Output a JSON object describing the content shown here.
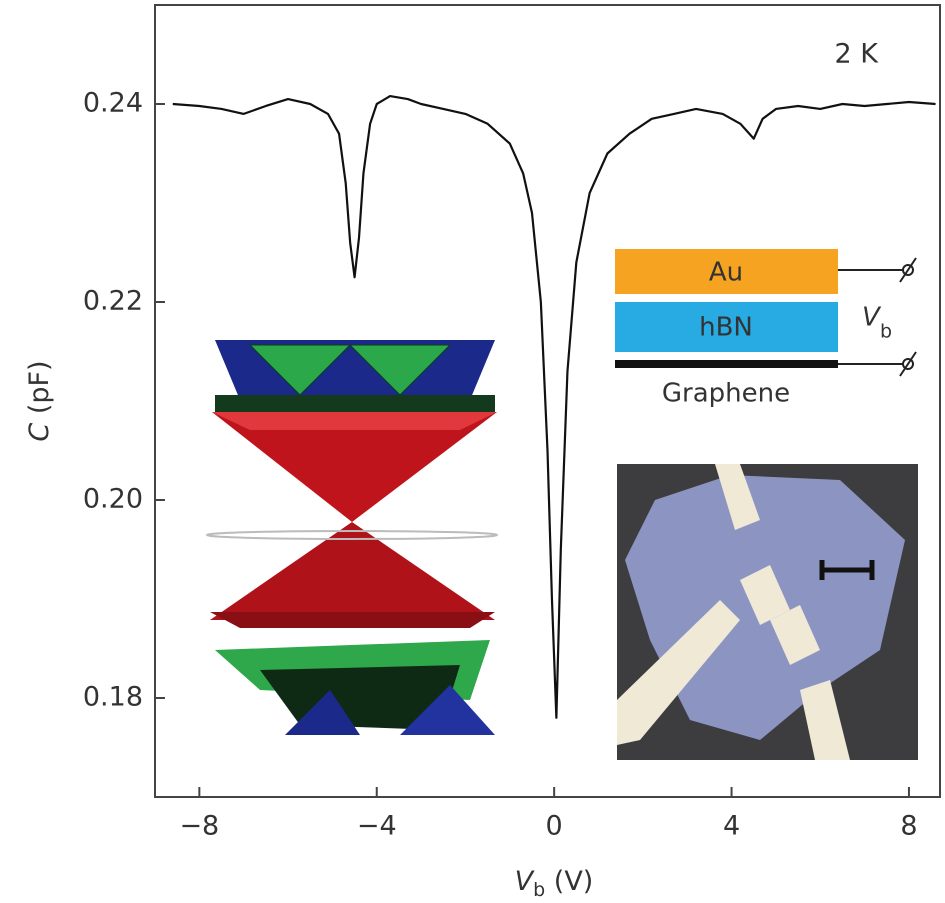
{
  "chart_data": {
    "type": "line",
    "ylabel": {
      "symbol": "C",
      "unit": "(pF)"
    },
    "xlabel": {
      "symbol": "V",
      "subscript": "b",
      "unit": "(V)"
    },
    "x": [
      -8.6,
      -8.0,
      -7.5,
      -7.0,
      -6.5,
      -6.0,
      -5.5,
      -5.1,
      -4.85,
      -4.7,
      -4.6,
      -4.5,
      -4.4,
      -4.3,
      -4.15,
      -4.0,
      -3.7,
      -3.3,
      -3.0,
      -2.5,
      -2.0,
      -1.5,
      -1.0,
      -0.7,
      -0.5,
      -0.3,
      -0.15,
      -0.05,
      0.05,
      0.15,
      0.3,
      0.5,
      0.8,
      1.2,
      1.7,
      2.2,
      2.7,
      3.2,
      3.8,
      4.2,
      4.5,
      4.7,
      5.0,
      5.5,
      6.0,
      6.5,
      7.0,
      7.5,
      8.0,
      8.6
    ],
    "values": [
      0.24,
      0.2398,
      0.2395,
      0.239,
      0.2398,
      0.2405,
      0.24,
      0.239,
      0.237,
      0.232,
      0.226,
      0.2225,
      0.2265,
      0.233,
      0.238,
      0.24,
      0.2408,
      0.2405,
      0.24,
      0.2395,
      0.239,
      0.238,
      0.236,
      0.233,
      0.229,
      0.22,
      0.205,
      0.19,
      0.178,
      0.195,
      0.213,
      0.224,
      0.231,
      0.235,
      0.237,
      0.2385,
      0.239,
      0.2395,
      0.239,
      0.238,
      0.2365,
      0.2385,
      0.2395,
      0.2398,
      0.2395,
      0.24,
      0.2398,
      0.24,
      0.2402,
      0.24
    ],
    "color": "#111111",
    "xlim": [
      -9,
      8.7
    ],
    "ylim": [
      0.17,
      0.25
    ],
    "xticks": [
      {
        "value": -8,
        "label": "−8"
      },
      {
        "value": -4,
        "label": "−4"
      },
      0,
      4,
      8
    ],
    "yticks": [
      0.18,
      {
        "value": 0.2,
        "label": "0.20"
      },
      0.22,
      0.24
    ],
    "annotations": {
      "temperature": "2 K",
      "layer_top": "Au",
      "layer_middle": "hBN",
      "layer_bottom": "Graphene",
      "bias_symbol": "V",
      "bias_subscript": "b"
    }
  }
}
